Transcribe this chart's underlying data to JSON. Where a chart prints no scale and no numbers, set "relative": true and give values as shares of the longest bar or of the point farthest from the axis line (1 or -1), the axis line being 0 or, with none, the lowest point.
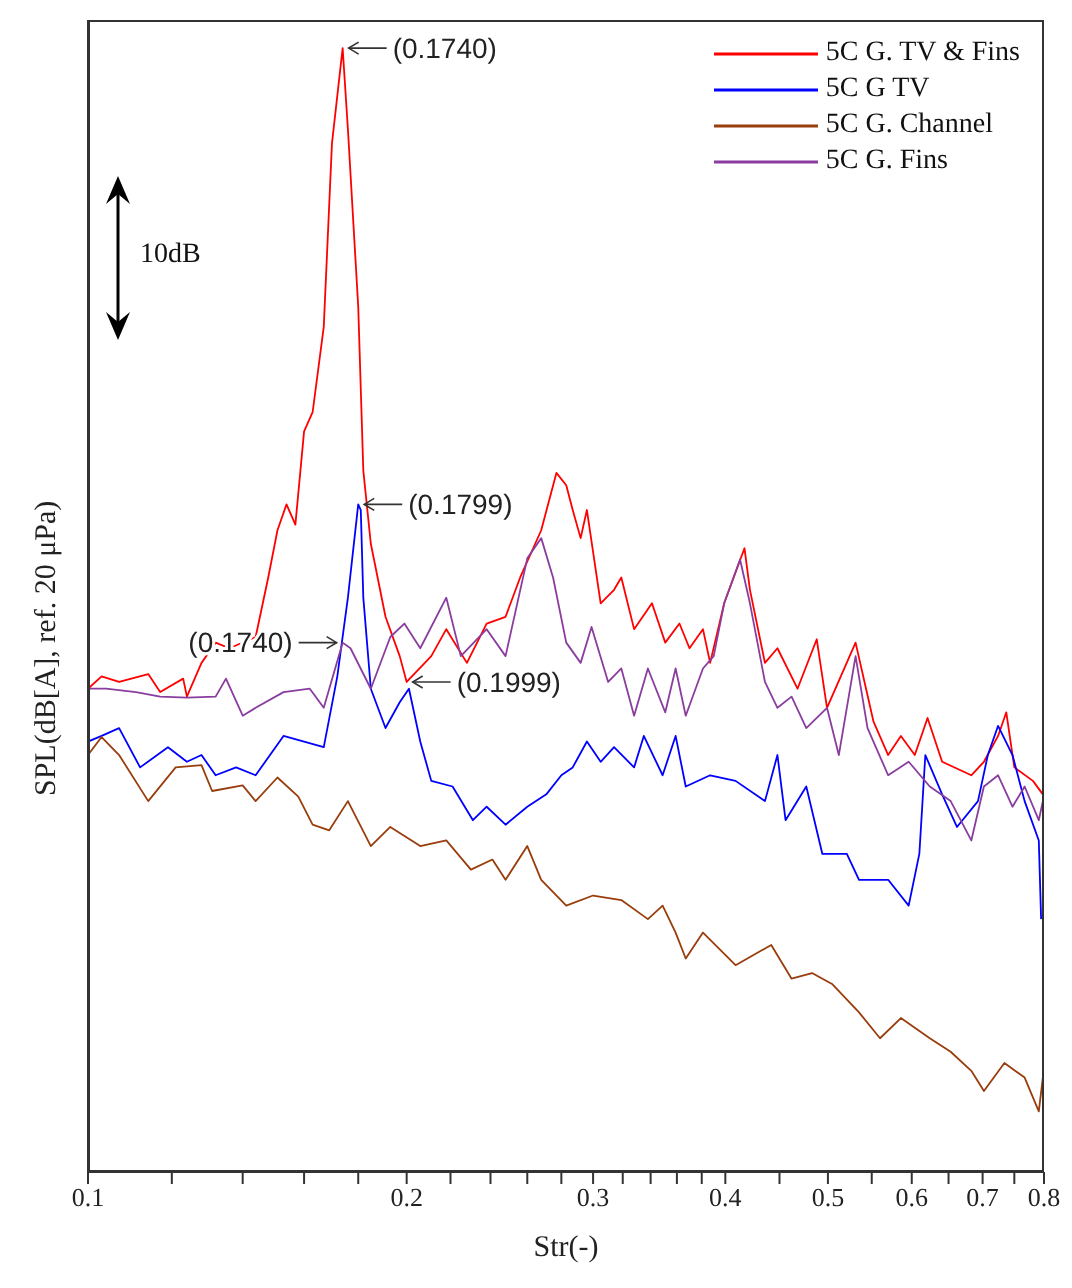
{
  "chart_data": {
    "type": "line",
    "xlabel": "Str(-)",
    "ylabel": "SPL(dB[A], ref. 20 μPa)",
    "log": "x",
    "relative": true,
    "legend": "top right",
    "grid": false,
    "marker": "none",
    "line_style": "solid",
    "xlim": [
      0.1,
      0.8
    ],
    "xticks": [
      0.1,
      {
        "value": 0.12,
        "label": null
      },
      {
        "value": 0.14,
        "label": null
      },
      {
        "value": 0.16,
        "label": null
      },
      {
        "value": 0.18,
        "label": null
      },
      0.2,
      {
        "value": 0.22,
        "label": null
      },
      {
        "value": 0.24,
        "label": null
      },
      {
        "value": 0.26,
        "label": null
      },
      {
        "value": 0.28,
        "label": null
      },
      0.3,
      {
        "value": 0.32,
        "label": null
      },
      {
        "value": 0.34,
        "label": null
      },
      {
        "value": 0.36,
        "label": null
      },
      {
        "value": 0.38,
        "label": null
      },
      0.4,
      {
        "value": 0.45,
        "label": null
      },
      0.5,
      {
        "value": 0.55,
        "label": null
      },
      0.6,
      {
        "value": 0.65,
        "label": null
      },
      0.7,
      {
        "value": 0.75,
        "label": null
      },
      0.8
    ],
    "annotations": [
      {
        "text": "(0.1740)",
        "x": 0.174,
        "y": 1
      },
      {
        "text": "(0.1799)",
        "x": 0.18,
        "y": 0.594
      },
      {
        "text": "(0.1740)",
        "x": 0.174,
        "y": 0.471
      },
      {
        "text": "(0.1999)",
        "x": 0.2,
        "y": 0.436
      },
      "10dB"
    ],
    "series": [
      {
        "name": "5C G. TV & Fins",
        "color": "#ff0000",
        "x": [
          0.1,
          0.103,
          0.107,
          0.114,
          0.117,
          0.123,
          0.124,
          0.128,
          0.132,
          0.136,
          0.144,
          0.148,
          0.151,
          0.154,
          0.157,
          0.16,
          0.163,
          0.167,
          0.17,
          0.174,
          0.176,
          0.18,
          0.182,
          0.185,
          0.191,
          0.197,
          0.2,
          0.211,
          0.218,
          0.228,
          0.238,
          0.248,
          0.256,
          0.268,
          0.277,
          0.283,
          0.287,
          0.292,
          0.296,
          0.305,
          0.314,
          0.319,
          0.328,
          0.341,
          0.351,
          0.362,
          0.37,
          0.381,
          0.387,
          0.399,
          0.417,
          0.422,
          0.436,
          0.448,
          0.468,
          0.488,
          0.499,
          0.531,
          0.552,
          0.57,
          0.586,
          0.604,
          0.621,
          0.641,
          0.683,
          0.702,
          0.724,
          0.737,
          0.75,
          0.781,
          0.798
        ],
        "values": [
          0.43,
          0.441,
          0.436,
          0.443,
          0.427,
          0.439,
          0.423,
          0.453,
          0.471,
          0.466,
          0.476,
          0.529,
          0.571,
          0.594,
          0.576,
          0.659,
          0.676,
          0.752,
          0.915,
          1,
          0.928,
          0.77,
          0.624,
          0.559,
          0.494,
          0.459,
          0.436,
          0.459,
          0.483,
          0.453,
          0.488,
          0.494,
          0.529,
          0.571,
          0.622,
          0.611,
          0.589,
          0.564,
          0.589,
          0.506,
          0.518,
          0.529,
          0.483,
          0.506,
          0.471,
          0.488,
          0.466,
          0.483,
          0.453,
          0.506,
          0.555,
          0.518,
          0.453,
          0.466,
          0.43,
          0.474,
          0.413,
          0.471,
          0.401,
          0.371,
          0.388,
          0.371,
          0.404,
          0.365,
          0.353,
          0.365,
          0.388,
          0.409,
          0.36,
          0.348,
          0.336
        ]
      },
      {
        "name": "5C G TV",
        "color": "#0000ff",
        "x": [
          0.1,
          0.103,
          0.107,
          0.112,
          0.119,
          0.124,
          0.128,
          0.132,
          0.138,
          0.144,
          0.153,
          0.16,
          0.167,
          0.172,
          0.176,
          0.18,
          0.181,
          0.182,
          0.185,
          0.191,
          0.197,
          0.201,
          0.206,
          0.211,
          0.221,
          0.231,
          0.238,
          0.248,
          0.26,
          0.271,
          0.28,
          0.287,
          0.296,
          0.305,
          0.314,
          0.328,
          0.335,
          0.349,
          0.359,
          0.367,
          0.387,
          0.409,
          0.436,
          0.448,
          0.456,
          0.477,
          0.494,
          0.521,
          0.535,
          0.57,
          0.596,
          0.61,
          0.618,
          0.641,
          0.662,
          0.693,
          0.708,
          0.724,
          0.747,
          0.767,
          0.791,
          0.795
        ],
        "values": [
          0.383,
          0.388,
          0.395,
          0.36,
          0.378,
          0.365,
          0.371,
          0.353,
          0.36,
          0.353,
          0.388,
          0.383,
          0.378,
          0.441,
          0.511,
          0.594,
          0.589,
          0.511,
          0.43,
          0.395,
          0.418,
          0.43,
          0.383,
          0.348,
          0.343,
          0.313,
          0.325,
          0.309,
          0.325,
          0.336,
          0.353,
          0.36,
          0.383,
          0.365,
          0.378,
          0.36,
          0.388,
          0.353,
          0.388,
          0.343,
          0.353,
          0.348,
          0.33,
          0.371,
          0.313,
          0.343,
          0.283,
          0.283,
          0.26,
          0.26,
          0.237,
          0.283,
          0.371,
          0.336,
          0.307,
          0.33,
          0.371,
          0.397,
          0.371,
          0.33,
          0.295,
          0.225
        ]
      },
      {
        "name": "5C G. Channel",
        "color": "#993d0d",
        "x": [
          0.1,
          0.103,
          0.107,
          0.114,
          0.121,
          0.128,
          0.131,
          0.14,
          0.144,
          0.151,
          0.158,
          0.163,
          0.169,
          0.176,
          0.185,
          0.193,
          0.206,
          0.218,
          0.23,
          0.241,
          0.248,
          0.26,
          0.268,
          0.283,
          0.3,
          0.319,
          0.338,
          0.349,
          0.359,
          0.367,
          0.381,
          0.409,
          0.442,
          0.462,
          0.483,
          0.505,
          0.535,
          0.56,
          0.586,
          0.624,
          0.653,
          0.683,
          0.702,
          0.734,
          0.767,
          0.791,
          0.798
        ],
        "values": [
          0.371,
          0.387,
          0.371,
          0.33,
          0.36,
          0.362,
          0.339,
          0.344,
          0.33,
          0.351,
          0.334,
          0.309,
          0.304,
          0.33,
          0.29,
          0.307,
          0.29,
          0.295,
          0.269,
          0.278,
          0.26,
          0.29,
          0.26,
          0.237,
          0.246,
          0.242,
          0.225,
          0.237,
          0.213,
          0.19,
          0.213,
          0.184,
          0.202,
          0.172,
          0.177,
          0.167,
          0.142,
          0.119,
          0.137,
          0.119,
          0.107,
          0.09,
          0.072,
          0.097,
          0.084,
          0.054,
          0.084
        ]
      },
      {
        "name": "5C G. Fins",
        "color": "#8a3d9e",
        "x": [
          0.1,
          0.104,
          0.111,
          0.117,
          0.124,
          0.132,
          0.135,
          0.14,
          0.144,
          0.153,
          0.162,
          0.167,
          0.174,
          0.177,
          0.185,
          0.193,
          0.199,
          0.206,
          0.218,
          0.225,
          0.238,
          0.248,
          0.26,
          0.268,
          0.275,
          0.283,
          0.292,
          0.299,
          0.31,
          0.319,
          0.328,
          0.338,
          0.351,
          0.359,
          0.367,
          0.381,
          0.39,
          0.399,
          0.413,
          0.422,
          0.436,
          0.448,
          0.462,
          0.477,
          0.499,
          0.512,
          0.531,
          0.545,
          0.57,
          0.596,
          0.624,
          0.653,
          0.683,
          0.702,
          0.724,
          0.747,
          0.767,
          0.791,
          0.798
        ],
        "values": [
          0.43,
          0.43,
          0.427,
          0.423,
          0.422,
          0.423,
          0.439,
          0.406,
          0.413,
          0.427,
          0.43,
          0.413,
          0.471,
          0.466,
          0.43,
          0.476,
          0.488,
          0.466,
          0.511,
          0.459,
          0.483,
          0.459,
          0.546,
          0.564,
          0.529,
          0.471,
          0.453,
          0.485,
          0.436,
          0.448,
          0.406,
          0.448,
          0.409,
          0.448,
          0.406,
          0.448,
          0.459,
          0.506,
          0.545,
          0.506,
          0.436,
          0.413,
          0.423,
          0.395,
          0.413,
          0.371,
          0.459,
          0.395,
          0.353,
          0.365,
          0.343,
          0.33,
          0.295,
          0.343,
          0.353,
          0.325,
          0.343,
          0.313,
          0.33
        ]
      }
    ]
  }
}
